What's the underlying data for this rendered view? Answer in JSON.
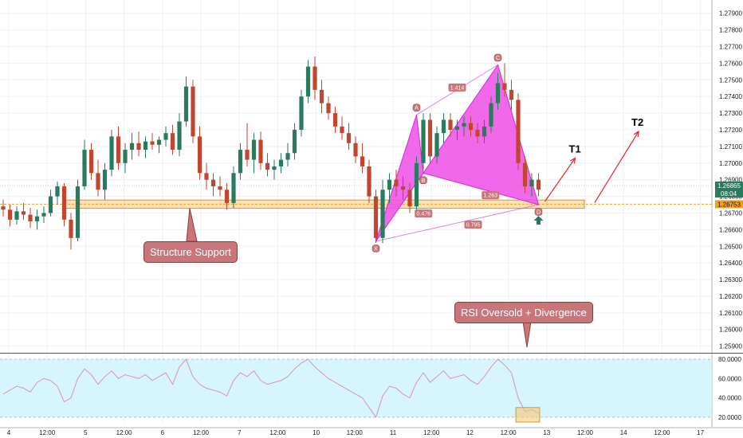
{
  "chart_data": {
    "type": "candlestick",
    "price_axis": {
      "range": [
        1.2586,
        1.2798
      ],
      "ticks": [
        "1.27900",
        "1.27800",
        "1.27700",
        "1.27600",
        "1.27500",
        "1.27400",
        "1.27300",
        "1.27200",
        "1.27100",
        "1.27000",
        "1.26900",
        "1.26800",
        "1.26700",
        "1.26600",
        "1.26500",
        "1.26400",
        "1.26300",
        "1.26200",
        "1.26100",
        "1.26000",
        "1.25900"
      ],
      "current_price": "1.26865",
      "countdown": "08:04",
      "level_price": "1.26753"
    },
    "time_axis": {
      "labels": [
        "4",
        "12:00",
        "5",
        "12:00",
        "6",
        "12:00",
        "7",
        "12:00",
        "10",
        "12:00",
        "11",
        "12:00",
        "12",
        "12:00",
        "13",
        "12:00",
        "14",
        "12:00",
        "17"
      ]
    },
    "rsi_axis": {
      "range": [
        15,
        85
      ],
      "ticks": [
        "80.0000",
        "60.0000",
        "40.0000",
        "20.0000"
      ],
      "overbought": 80,
      "oversold": 20
    },
    "candles": [
      [
        1.2674,
        1.2678,
        1.2668,
        1.2672
      ],
      [
        1.2672,
        1.2675,
        1.2662,
        1.2666
      ],
      [
        1.2666,
        1.2674,
        1.2663,
        1.2671
      ],
      [
        1.2671,
        1.2676,
        1.2666,
        1.2669
      ],
      [
        1.2669,
        1.2673,
        1.2661,
        1.2665
      ],
      [
        1.2665,
        1.2672,
        1.266,
        1.2668
      ],
      [
        1.2668,
        1.2674,
        1.2664,
        1.267
      ],
      [
        1.267,
        1.2684,
        1.2668,
        1.268
      ],
      [
        1.268,
        1.2689,
        1.2675,
        1.2686
      ],
      [
        1.2686,
        1.2688,
        1.2662,
        1.2666
      ],
      [
        1.2666,
        1.267,
        1.2648,
        1.2655
      ],
      [
        1.2655,
        1.269,
        1.2653,
        1.2686
      ],
      [
        1.2686,
        1.2714,
        1.2684,
        1.2708
      ],
      [
        1.2708,
        1.2712,
        1.269,
        1.2694
      ],
      [
        1.2694,
        1.2702,
        1.268,
        1.2684
      ],
      [
        1.2684,
        1.27,
        1.2678,
        1.2696
      ],
      [
        1.2696,
        1.272,
        1.2692,
        1.2716
      ],
      [
        1.2716,
        1.2722,
        1.2696,
        1.27
      ],
      [
        1.27,
        1.2712,
        1.2694,
        1.2708
      ],
      [
        1.2708,
        1.2718,
        1.2702,
        1.2712
      ],
      [
        1.2712,
        1.2719,
        1.2704,
        1.2708
      ],
      [
        1.2708,
        1.2716,
        1.2703,
        1.2713
      ],
      [
        1.2713,
        1.2718,
        1.2708,
        1.2711
      ],
      [
        1.2711,
        1.2716,
        1.2706,
        1.2714
      ],
      [
        1.2714,
        1.2722,
        1.271,
        1.2718
      ],
      [
        1.2718,
        1.2723,
        1.2705,
        1.2708
      ],
      [
        1.2708,
        1.273,
        1.2704,
        1.2725
      ],
      [
        1.2725,
        1.2752,
        1.2722,
        1.2746
      ],
      [
        1.2746,
        1.275,
        1.2712,
        1.2716
      ],
      [
        1.2716,
        1.2722,
        1.269,
        1.2694
      ],
      [
        1.2694,
        1.27,
        1.2684,
        1.269
      ],
      [
        1.269,
        1.2694,
        1.268,
        1.2686
      ],
      [
        1.2686,
        1.2692,
        1.268,
        1.2684
      ],
      [
        1.2684,
        1.2688,
        1.2672,
        1.2676
      ],
      [
        1.2676,
        1.2698,
        1.2673,
        1.2694
      ],
      [
        1.2694,
        1.2712,
        1.269,
        1.2708
      ],
      [
        1.2708,
        1.2724,
        1.2698,
        1.2702
      ],
      [
        1.2702,
        1.2718,
        1.2694,
        1.2714
      ],
      [
        1.2714,
        1.2719,
        1.2696,
        1.27
      ],
      [
        1.27,
        1.2706,
        1.2692,
        1.2696
      ],
      [
        1.2696,
        1.2702,
        1.269,
        1.2698
      ],
      [
        1.2698,
        1.2706,
        1.2694,
        1.2702
      ],
      [
        1.2702,
        1.2712,
        1.2698,
        1.2706
      ],
      [
        1.2706,
        1.2724,
        1.2702,
        1.272
      ],
      [
        1.272,
        1.2744,
        1.2716,
        1.274
      ],
      [
        1.274,
        1.2762,
        1.2736,
        1.2758
      ],
      [
        1.2758,
        1.2764,
        1.2738,
        1.2744
      ],
      [
        1.2744,
        1.275,
        1.273,
        1.2736
      ],
      [
        1.2736,
        1.274,
        1.2726,
        1.273
      ],
      [
        1.273,
        1.2734,
        1.2718,
        1.2722
      ],
      [
        1.2722,
        1.2728,
        1.2714,
        1.2718
      ],
      [
        1.2718,
        1.2724,
        1.2708,
        1.2712
      ],
      [
        1.2712,
        1.2716,
        1.27,
        1.2704
      ],
      [
        1.2704,
        1.2712,
        1.2694,
        1.2698
      ],
      [
        1.2698,
        1.2702,
        1.2676,
        1.268
      ],
      [
        1.268,
        1.2684,
        1.2652,
        1.2655
      ],
      [
        1.2655,
        1.269,
        1.2652,
        1.2684
      ],
      [
        1.2684,
        1.2694,
        1.2676,
        1.269
      ],
      [
        1.269,
        1.2696,
        1.268,
        1.2686
      ],
      [
        1.2686,
        1.2692,
        1.2678,
        1.2684
      ],
      [
        1.2684,
        1.2688,
        1.267,
        1.2674
      ],
      [
        1.2674,
        1.2704,
        1.2672,
        1.27
      ],
      [
        1.27,
        1.273,
        1.2696,
        1.2726
      ],
      [
        1.2726,
        1.273,
        1.27,
        1.2704
      ],
      [
        1.2704,
        1.2722,
        1.27,
        1.2718
      ],
      [
        1.2718,
        1.273,
        1.2712,
        1.2726
      ],
      [
        1.2726,
        1.273,
        1.2716,
        1.272
      ],
      [
        1.272,
        1.2726,
        1.2714,
        1.2722
      ],
      [
        1.2722,
        1.2728,
        1.2716,
        1.2724
      ],
      [
        1.2724,
        1.2728,
        1.2716,
        1.272
      ],
      [
        1.272,
        1.2724,
        1.2712,
        1.2716
      ],
      [
        1.2716,
        1.2726,
        1.2712,
        1.2722
      ],
      [
        1.2722,
        1.274,
        1.2718,
        1.2736
      ],
      [
        1.2736,
        1.2754,
        1.2732,
        1.2748
      ],
      [
        1.2748,
        1.276,
        1.274,
        1.2744
      ],
      [
        1.2744,
        1.275,
        1.2732,
        1.2738
      ],
      [
        1.2738,
        1.2742,
        1.2696,
        1.27
      ],
      [
        1.27,
        1.2704,
        1.2682,
        1.2686
      ],
      [
        1.2686,
        1.2694,
        1.268,
        1.269
      ],
      [
        1.269,
        1.2694,
        1.268,
        1.2684
      ]
    ],
    "rsi": [
      44,
      48,
      52,
      50,
      46,
      56,
      60,
      58,
      52,
      36,
      40,
      60,
      70,
      64,
      54,
      62,
      68,
      60,
      64,
      62,
      60,
      64,
      58,
      62,
      66,
      54,
      72,
      80,
      62,
      54,
      50,
      48,
      46,
      42,
      58,
      66,
      62,
      68,
      58,
      54,
      56,
      58,
      62,
      70,
      76,
      80,
      72,
      66,
      60,
      56,
      52,
      48,
      44,
      40,
      30,
      20,
      42,
      52,
      50,
      44,
      40,
      56,
      66,
      56,
      62,
      68,
      60,
      62,
      64,
      58,
      54,
      62,
      72,
      80,
      74,
      66,
      40,
      26,
      28,
      24
    ],
    "harmonic": {
      "points": [
        {
          "label": "X",
          "candle": 55,
          "price": 1.2653
        },
        {
          "label": "A",
          "candle": 61,
          "price": 1.2729
        },
        {
          "label": "B",
          "candle": 62,
          "price": 1.2694
        },
        {
          "label": "C",
          "candle": 73,
          "price": 1.2759
        },
        {
          "label": "D",
          "candle": 79,
          "price": 1.2675
        }
      ],
      "ratios": [
        "1.414",
        "1.263",
        "0.476",
        "0.795"
      ]
    },
    "targets": [
      "T1",
      "T2"
    ],
    "annotations": {
      "support": "Structure Support",
      "rsi_note": "RSI Oversold + Divergence"
    }
  }
}
